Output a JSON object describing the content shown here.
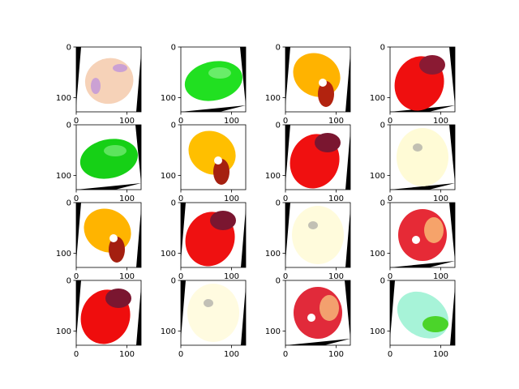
{
  "figure": {
    "grid": {
      "rows": 4,
      "cols": 4
    },
    "axes_ticks": {
      "y_labels": [
        "0",
        "100"
      ],
      "x_labels": [
        "0",
        "100"
      ],
      "x_tick_labels_visible_on_rows": [
        1,
        2,
        3,
        4
      ]
    },
    "panels": [
      {
        "row": 1,
        "col": 1,
        "subject": "peeled fruit",
        "fill": "#f6d2b8",
        "accent": "#b98be0",
        "tilt": "left",
        "pose": "tilted-up"
      },
      {
        "row": 1,
        "col": 2,
        "subject": "green fruit",
        "fill": "#21e021",
        "accent": "#9af59a",
        "tilt": "right",
        "pose": "lying"
      },
      {
        "row": 1,
        "col": 3,
        "subject": "yellow fruit",
        "fill": "#ffb300",
        "accent": "#b2230f",
        "tilt": "left",
        "pose": "tilted-down"
      },
      {
        "row": 1,
        "col": 4,
        "subject": "red fruit",
        "fill": "#ef0f0f",
        "accent": "#8a1a33",
        "tilt": "right",
        "pose": "upright"
      },
      {
        "row": 2,
        "col": 1,
        "subject": "green fruit",
        "fill": "#16d016",
        "accent": "#8ef28e",
        "tilt": "right",
        "pose": "lying"
      },
      {
        "row": 2,
        "col": 2,
        "subject": "yellow fruit",
        "fill": "#ffbf00",
        "accent": "#a52010",
        "tilt": "none",
        "pose": "tilted-down"
      },
      {
        "row": 2,
        "col": 3,
        "subject": "red fruit",
        "fill": "#f01010",
        "accent": "#7a1630",
        "tilt": "left",
        "pose": "upright"
      },
      {
        "row": 2,
        "col": 4,
        "subject": "pale fruit",
        "fill": "#fffbd6",
        "accent": "#9a9a9a",
        "tilt": "right",
        "pose": "pale"
      },
      {
        "row": 3,
        "col": 1,
        "subject": "yellow fruit",
        "fill": "#ffb400",
        "accent": "#a41f10",
        "tilt": "left",
        "pose": "tilted-down"
      },
      {
        "row": 3,
        "col": 2,
        "subject": "red fruit",
        "fill": "#ef1111",
        "accent": "#7a1630",
        "tilt": "left",
        "pose": "upright"
      },
      {
        "row": 3,
        "col": 3,
        "subject": "pale fruit",
        "fill": "#fffbdc",
        "accent": "#9a9a9a",
        "tilt": "left",
        "pose": "pale"
      },
      {
        "row": 3,
        "col": 4,
        "subject": "red speckled fruit",
        "fill": "#e62a36",
        "accent": "#f6a36a",
        "tilt": "right",
        "pose": "round"
      },
      {
        "row": 4,
        "col": 1,
        "subject": "red fruit",
        "fill": "#ef0d0d",
        "accent": "#7a1630",
        "tilt": "left",
        "pose": "upright"
      },
      {
        "row": 4,
        "col": 2,
        "subject": "pale fruit",
        "fill": "#fffbe0",
        "accent": "#9a9a9a",
        "tilt": "left",
        "pose": "pale"
      },
      {
        "row": 4,
        "col": 3,
        "subject": "red speckled fruit",
        "fill": "#e12a3a",
        "accent": "#f3a06e",
        "tilt": "right",
        "pose": "round"
      },
      {
        "row": 4,
        "col": 4,
        "subject": "green-white fruit",
        "fill": "#a7f3d8",
        "accent": "#4bd42a",
        "tilt": "left",
        "pose": "lying-down"
      }
    ]
  }
}
